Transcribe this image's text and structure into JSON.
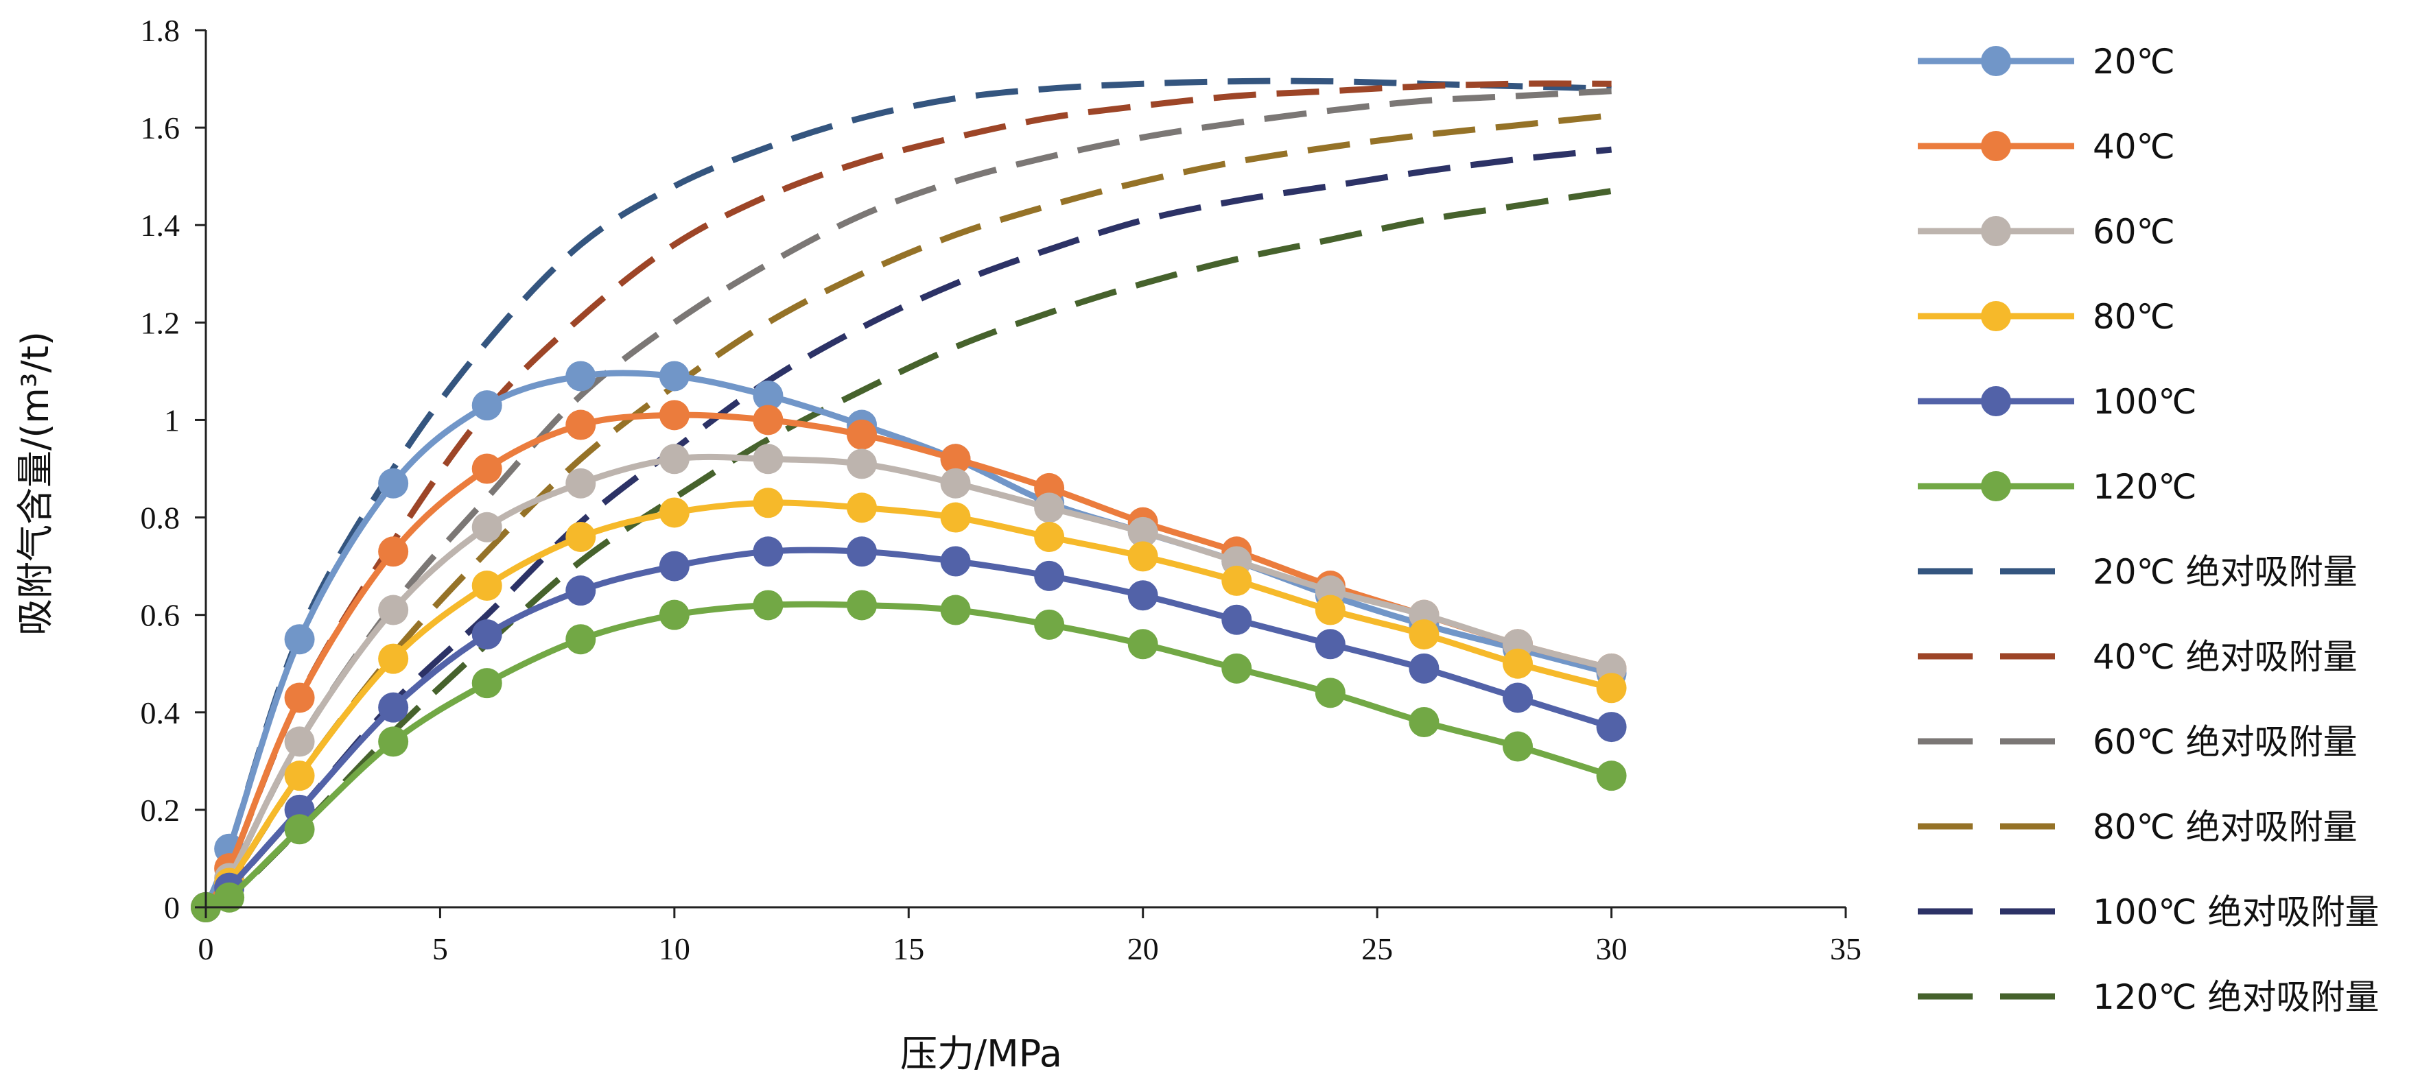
{
  "chart_data": {
    "type": "line",
    "xlabel": "压力/MPa",
    "ylabel": "吸附气含量/(m³/t)",
    "xlim": [
      0,
      35
    ],
    "ylim": [
      0,
      1.8
    ],
    "xticks": [
      0,
      5,
      10,
      15,
      20,
      25,
      30,
      35
    ],
    "yticks": [
      0,
      0.2,
      0.4,
      0.6,
      0.8,
      1,
      1.2,
      1.4,
      1.6,
      1.8
    ],
    "ytick_labels": [
      "0",
      "0.2",
      "0.4",
      "0.6",
      "0.8",
      "1",
      "1.2",
      "1.4",
      "1.6",
      "1.8"
    ],
    "grid": false,
    "legend_position": "right",
    "series": [
      {
        "name": "20℃",
        "style": "solid-marker",
        "color": "#7196C8",
        "x": [
          0,
          0.5,
          2,
          4,
          6,
          8,
          10,
          12,
          14,
          16,
          18,
          20,
          22,
          24,
          26,
          28,
          30
        ],
        "y": [
          0,
          0.12,
          0.55,
          0.87,
          1.03,
          1.09,
          1.09,
          1.05,
          0.99,
          0.92,
          0.83,
          0.77,
          0.71,
          0.64,
          0.58,
          0.53,
          0.48
        ]
      },
      {
        "name": "40℃",
        "style": "solid-marker",
        "color": "#EB7C3D",
        "x": [
          0,
          0.5,
          2,
          4,
          6,
          8,
          10,
          12,
          14,
          16,
          18,
          20,
          22,
          24,
          26,
          28,
          30
        ],
        "y": [
          0,
          0.08,
          0.43,
          0.73,
          0.9,
          0.99,
          1.01,
          1.0,
          0.97,
          0.92,
          0.86,
          0.79,
          0.73,
          0.66,
          0.6,
          0.54,
          0.49
        ]
      },
      {
        "name": "60℃",
        "style": "solid-marker",
        "color": "#BDB4AE",
        "x": [
          0,
          0.5,
          2,
          4,
          6,
          8,
          10,
          12,
          14,
          16,
          18,
          20,
          22,
          24,
          26,
          28,
          30
        ],
        "y": [
          0,
          0.06,
          0.34,
          0.61,
          0.78,
          0.87,
          0.92,
          0.92,
          0.91,
          0.87,
          0.82,
          0.77,
          0.71,
          0.65,
          0.6,
          0.54,
          0.49
        ]
      },
      {
        "name": "80℃",
        "style": "solid-marker",
        "color": "#F6B92A",
        "x": [
          0,
          0.5,
          2,
          4,
          6,
          8,
          10,
          12,
          14,
          16,
          18,
          20,
          22,
          24,
          26,
          28,
          30
        ],
        "y": [
          0,
          0.05,
          0.27,
          0.51,
          0.66,
          0.76,
          0.81,
          0.83,
          0.82,
          0.8,
          0.76,
          0.72,
          0.67,
          0.61,
          0.56,
          0.5,
          0.45
        ]
      },
      {
        "name": "100℃",
        "style": "solid-marker",
        "color": "#5262A8",
        "x": [
          0,
          0.5,
          2,
          4,
          6,
          8,
          10,
          12,
          14,
          16,
          18,
          20,
          22,
          24,
          26,
          28,
          30
        ],
        "y": [
          0,
          0.04,
          0.2,
          0.41,
          0.56,
          0.65,
          0.7,
          0.73,
          0.73,
          0.71,
          0.68,
          0.64,
          0.59,
          0.54,
          0.49,
          0.43,
          0.37
        ]
      },
      {
        "name": "120℃",
        "style": "solid-marker",
        "color": "#72A845",
        "x": [
          0,
          0.5,
          2,
          4,
          6,
          8,
          10,
          12,
          14,
          16,
          18,
          20,
          22,
          24,
          26,
          28,
          30
        ],
        "y": [
          0,
          0.02,
          0.16,
          0.34,
          0.46,
          0.55,
          0.6,
          0.62,
          0.62,
          0.61,
          0.58,
          0.54,
          0.49,
          0.44,
          0.38,
          0.33,
          0.27
        ]
      },
      {
        "name": "20℃ 绝对吸附量",
        "style": "dashed",
        "color": "#34557F",
        "x": [
          0,
          0.5,
          2,
          4,
          6,
          8,
          10,
          12,
          14,
          16,
          18,
          20,
          22,
          24,
          26,
          28,
          30
        ],
        "y": [
          0,
          0.12,
          0.56,
          0.9,
          1.16,
          1.36,
          1.48,
          1.56,
          1.62,
          1.66,
          1.68,
          1.69,
          1.695,
          1.695,
          1.69,
          1.685,
          1.68
        ]
      },
      {
        "name": "40℃ 绝对吸附量",
        "style": "dashed",
        "color": "#9D4527",
        "x": [
          0,
          0.5,
          2,
          4,
          6,
          8,
          10,
          12,
          14,
          16,
          18,
          20,
          22,
          24,
          26,
          28,
          30
        ],
        "y": [
          0,
          0.08,
          0.43,
          0.75,
          1.02,
          1.21,
          1.36,
          1.46,
          1.53,
          1.58,
          1.62,
          1.645,
          1.665,
          1.675,
          1.685,
          1.69,
          1.69
        ]
      },
      {
        "name": "60℃ 绝对吸附量",
        "style": "dashed",
        "color": "#7B7775",
        "x": [
          0,
          0.5,
          2,
          4,
          6,
          8,
          10,
          12,
          14,
          16,
          18,
          20,
          22,
          24,
          26,
          28,
          30
        ],
        "y": [
          0,
          0.06,
          0.34,
          0.62,
          0.84,
          1.05,
          1.2,
          1.32,
          1.42,
          1.49,
          1.54,
          1.58,
          1.61,
          1.635,
          1.655,
          1.665,
          1.675
        ]
      },
      {
        "name": "80℃ 绝对吸附量",
        "style": "dashed",
        "color": "#957227",
        "x": [
          0,
          0.5,
          2,
          4,
          6,
          8,
          10,
          12,
          14,
          16,
          18,
          20,
          22,
          24,
          26,
          28,
          30
        ],
        "y": [
          0,
          0.05,
          0.27,
          0.52,
          0.73,
          0.92,
          1.07,
          1.2,
          1.3,
          1.38,
          1.44,
          1.49,
          1.53,
          1.56,
          1.585,
          1.605,
          1.625
        ]
      },
      {
        "name": "100℃ 绝对吸附量",
        "style": "dashed",
        "color": "#2C3266",
        "x": [
          0,
          0.5,
          2,
          4,
          6,
          8,
          10,
          12,
          14,
          16,
          18,
          20,
          22,
          24,
          26,
          28,
          30
        ],
        "y": [
          0,
          0.04,
          0.2,
          0.42,
          0.6,
          0.79,
          0.94,
          1.08,
          1.19,
          1.28,
          1.35,
          1.41,
          1.45,
          1.48,
          1.51,
          1.535,
          1.555
        ]
      },
      {
        "name": "120℃ 绝对吸附量",
        "style": "dashed",
        "color": "#46622C",
        "x": [
          0,
          0.5,
          2,
          4,
          6,
          8,
          10,
          12,
          14,
          16,
          18,
          20,
          22,
          24,
          26,
          28,
          30
        ],
        "y": [
          0,
          0.02,
          0.16,
          0.36,
          0.54,
          0.71,
          0.84,
          0.96,
          1.06,
          1.15,
          1.22,
          1.28,
          1.33,
          1.37,
          1.41,
          1.44,
          1.47
        ]
      }
    ]
  }
}
